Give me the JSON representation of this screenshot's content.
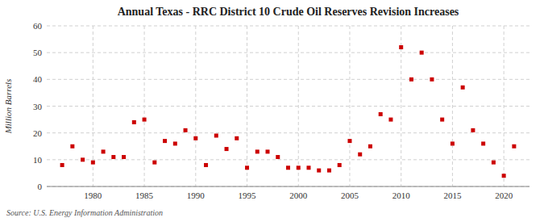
{
  "chart_data": {
    "type": "scatter",
    "title": "Annual Texas - RRC District 10 Crude Oil Reserves Revision Increases",
    "ylabel": "Million Barrels",
    "annotations": [
      "Source: U.S. Energy Information Administration"
    ],
    "x": [
      1977,
      1978,
      1979,
      1980,
      1981,
      1982,
      1983,
      1984,
      1985,
      1986,
      1987,
      1988,
      1989,
      1990,
      1991,
      1992,
      1993,
      1994,
      1995,
      1996,
      1997,
      1998,
      1999,
      2000,
      2001,
      2002,
      2003,
      2004,
      2005,
      2006,
      2007,
      2008,
      2009,
      2010,
      2011,
      2012,
      2013,
      2014,
      2015,
      2016,
      2017,
      2018,
      2019,
      2020,
      2021
    ],
    "values": [
      8,
      15,
      10,
      9,
      13,
      11,
      11,
      24,
      25,
      9,
      17,
      16,
      21,
      18,
      8,
      19,
      14,
      18,
      7,
      13,
      13,
      11,
      7,
      7,
      7,
      6,
      6,
      8,
      17,
      12,
      15,
      27,
      25,
      52,
      40,
      50,
      40,
      25,
      16,
      37,
      21,
      16,
      9,
      4,
      15
    ],
    "color": "#cc0000",
    "marker": "square",
    "xlim": [
      1975.5,
      2022.5
    ],
    "ylim": [
      0,
      60
    ],
    "xticks": [
      1980,
      1985,
      1990,
      1995,
      2000,
      2005,
      2010,
      2015,
      2020
    ],
    "yticks": [
      0,
      10,
      20,
      30,
      40,
      50,
      60
    ],
    "grid": true
  }
}
